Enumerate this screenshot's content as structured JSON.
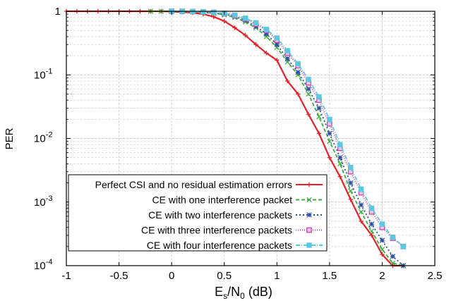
{
  "chart_data": {
    "type": "line",
    "xlabel_main": "E",
    "xlabel_sub1": "s",
    "xlabel_mid": "/N",
    "xlabel_sub2": "0",
    "xlabel_tail": " (dB)",
    "ylabel": "PER",
    "xlim": [
      -1,
      2.5
    ],
    "ylim": [
      0.0001,
      1
    ],
    "yscale": "log",
    "grid": true,
    "legend_position": "bottom-left",
    "x_ticks": [
      "-1",
      "-0.5",
      "0",
      "0.5",
      "1",
      "1.5",
      "2",
      "2.5"
    ],
    "y_ticks": [
      {
        "base": "1",
        "exp": ""
      },
      {
        "base": "10",
        "exp": "-1"
      },
      {
        "base": "10",
        "exp": "-2"
      },
      {
        "base": "10",
        "exp": "-3"
      },
      {
        "base": "10",
        "exp": "-4"
      }
    ],
    "series": [
      {
        "name": "Perfect CSI and no residual estimation errors",
        "color": "#e8202a",
        "marker": "plus",
        "dash": "",
        "x": [
          -1.0,
          -0.9,
          -0.8,
          -0.7,
          -0.6,
          -0.5,
          -0.4,
          -0.3,
          -0.2,
          -0.1,
          0.0,
          0.1,
          0.2,
          0.3,
          0.4,
          0.5,
          0.6,
          0.7,
          0.8,
          0.9,
          1.0,
          1.1,
          1.2,
          1.3,
          1.4,
          1.5,
          1.6,
          1.7,
          1.8,
          1.9,
          2.0,
          2.1,
          2.2
        ],
        "values": [
          1,
          1,
          1,
          1,
          1,
          1,
          1,
          1,
          1,
          1,
          0.99,
          0.97,
          0.95,
          0.9,
          0.82,
          0.7,
          0.55,
          0.42,
          0.3,
          0.22,
          0.17,
          0.08,
          0.05,
          0.024,
          0.012,
          0.005,
          0.0025,
          0.0011,
          0.0005,
          0.0003,
          0.00015,
          0.0001,
          0.0001
        ]
      },
      {
        "name": "CE with one interference packet",
        "color": "#3cae3c",
        "marker": "x",
        "dash": "5,3",
        "x": [
          -0.2,
          -0.1,
          0.0,
          0.1,
          0.2,
          0.3,
          0.4,
          0.5,
          0.6,
          0.7,
          0.8,
          0.9,
          1.0,
          1.1,
          1.2,
          1.3,
          1.4,
          1.5,
          1.6,
          1.7,
          1.8,
          1.9,
          2.0,
          2.1,
          2.2
        ],
        "values": [
          1,
          1,
          1,
          0.99,
          0.98,
          0.96,
          0.93,
          0.88,
          0.8,
          0.68,
          0.55,
          0.4,
          0.27,
          0.16,
          0.1,
          0.05,
          0.022,
          0.009,
          0.004,
          0.0015,
          0.0007,
          0.00035,
          0.00018,
          0.00011,
          0.0001
        ]
      },
      {
        "name": "CE with two interference packets",
        "color": "#2e4da6",
        "marker": "star",
        "dash": "2,3",
        "x": [
          0.0,
          0.1,
          0.2,
          0.3,
          0.4,
          0.5,
          0.6,
          0.7,
          0.8,
          0.9,
          1.0,
          1.1,
          1.2,
          1.3,
          1.4,
          1.5,
          1.6,
          1.7,
          1.8,
          1.9,
          2.0,
          2.1,
          2.2
        ],
        "values": [
          1,
          1,
          0.99,
          0.97,
          0.94,
          0.9,
          0.83,
          0.72,
          0.58,
          0.44,
          0.3,
          0.18,
          0.11,
          0.06,
          0.03,
          0.012,
          0.005,
          0.002,
          0.0009,
          0.00045,
          0.00025,
          0.00014,
          0.0001
        ]
      },
      {
        "name": "CE with three interference packets",
        "color": "#cc44aa",
        "marker": "square",
        "dash": "1,2",
        "x": [
          0.0,
          0.1,
          0.2,
          0.3,
          0.4,
          0.5,
          0.6,
          0.7,
          0.8,
          0.9,
          1.0,
          1.1,
          1.2,
          1.3,
          1.4,
          1.5,
          1.6,
          1.7,
          1.8,
          1.9,
          2.0,
          2.1,
          2.2
        ],
        "values": [
          1,
          1,
          0.99,
          0.98,
          0.96,
          0.92,
          0.85,
          0.76,
          0.63,
          0.5,
          0.35,
          0.22,
          0.14,
          0.075,
          0.04,
          0.017,
          0.007,
          0.003,
          0.0014,
          0.0007,
          0.0004,
          0.00027,
          0.0002
        ]
      },
      {
        "name": "CE with four interference packets",
        "color": "#5bc8e0",
        "marker": "filledsquare",
        "dash": "6,2,1,2",
        "x": [
          0.0,
          0.1,
          0.2,
          0.3,
          0.4,
          0.5,
          0.6,
          0.7,
          0.8,
          0.9,
          1.0,
          1.1,
          1.2,
          1.3,
          1.4,
          1.5,
          1.6,
          1.7,
          1.8,
          1.9,
          2.0,
          2.1,
          2.2
        ],
        "values": [
          1,
          1,
          0.99,
          0.98,
          0.96,
          0.93,
          0.87,
          0.78,
          0.66,
          0.52,
          0.38,
          0.24,
          0.15,
          0.085,
          0.045,
          0.02,
          0.008,
          0.0035,
          0.0016,
          0.0008,
          0.00045,
          0.00028,
          0.0002
        ]
      }
    ]
  }
}
